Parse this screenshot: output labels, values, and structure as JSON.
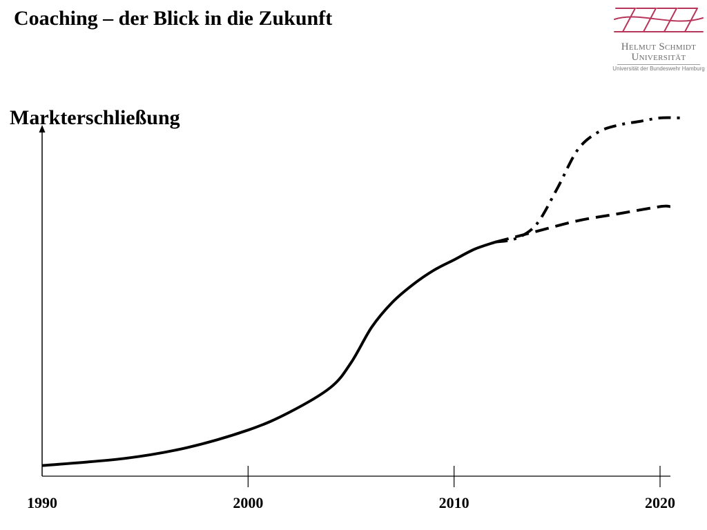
{
  "slide": {
    "title": "Coaching – der Blick in die Zukunft"
  },
  "logo": {
    "line1": "Helmut Schmidt",
    "line2": "Universität",
    "line3": "Universität der Bundeswehr Hamburg",
    "color": "#b8355a"
  },
  "chart_data": {
    "type": "line",
    "title": "",
    "ylabel": "Markterschließung",
    "xlabel": "",
    "xlim": [
      1990,
      2020.5
    ],
    "ylim": [
      0,
      1
    ],
    "x_ticks": [
      1990,
      2000,
      2010,
      2020
    ],
    "x_tick_labels": [
      "1990",
      "2000",
      "2010",
      "2020"
    ],
    "grid": false,
    "legend": "none",
    "series": [
      {
        "style": "solid",
        "x": [
          1990,
          1994,
          1997,
          2000,
          2002,
          2004,
          2005,
          2006,
          2007,
          2008,
          2009,
          2010,
          2011,
          2012
        ],
        "y": [
          0.03,
          0.05,
          0.08,
          0.13,
          0.18,
          0.25,
          0.32,
          0.42,
          0.49,
          0.54,
          0.58,
          0.61,
          0.64,
          0.66
        ]
      },
      {
        "style": "dashed",
        "x": [
          2012,
          2014,
          2016,
          2018,
          2020,
          2020.5
        ],
        "y": [
          0.66,
          0.69,
          0.72,
          0.74,
          0.76,
          0.76
        ]
      },
      {
        "style": "dashdot",
        "x": [
          2012,
          2013,
          2014,
          2015,
          2016,
          2017,
          2018,
          2019,
          2020,
          2021
        ],
        "y": [
          0.66,
          0.67,
          0.71,
          0.81,
          0.92,
          0.97,
          0.99,
          1.0,
          1.01,
          1.01
        ]
      }
    ]
  }
}
